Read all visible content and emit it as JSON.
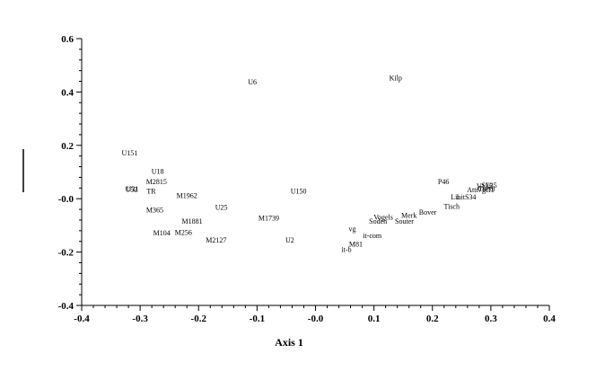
{
  "chart_data": {
    "type": "scatter",
    "title": "",
    "xlabel": "Axis 1",
    "ylabel": "",
    "xlim": [
      -0.4,
      0.4
    ],
    "ylim": [
      -0.4,
      0.6
    ],
    "xticks": [
      "-0.4",
      "-0.3",
      "-0.2",
      "-0.1",
      "-0.0",
      "0.1",
      "0.2",
      "0.3",
      "0.4"
    ],
    "yticks": [
      "0.6",
      "0.4",
      "0.2",
      "-0.0",
      "-0.2",
      "-0.4"
    ],
    "grid": false,
    "points": [
      {
        "label": "U6",
        "x": -0.108,
        "y": 0.438
      },
      {
        "label": "Kilp",
        "x": 0.137,
        "y": 0.454
      },
      {
        "label": "U151",
        "x": -0.318,
        "y": 0.172
      },
      {
        "label": "U18",
        "x": -0.27,
        "y": 0.104
      },
      {
        "label": "M2815",
        "x": -0.272,
        "y": 0.064
      },
      {
        "label": "U52",
        "x": -0.315,
        "y": 0.036
      },
      {
        "label": "U31",
        "x": -0.313,
        "y": 0.038
      },
      {
        "label": "TR",
        "x": -0.281,
        "y": 0.03
      },
      {
        "label": "M1962",
        "x": -0.22,
        "y": 0.012
      },
      {
        "label": "U150",
        "x": -0.029,
        "y": 0.03
      },
      {
        "label": "U25",
        "x": -0.161,
        "y": -0.032
      },
      {
        "label": "M365",
        "x": -0.275,
        "y": -0.042
      },
      {
        "label": "M1739",
        "x": -0.08,
        "y": -0.072
      },
      {
        "label": "M1881",
        "x": -0.211,
        "y": -0.084
      },
      {
        "label": "M104",
        "x": -0.263,
        "y": -0.128
      },
      {
        "label": "M256",
        "x": -0.226,
        "y": -0.126
      },
      {
        "label": "M2127",
        "x": -0.17,
        "y": -0.154
      },
      {
        "label": "U2",
        "x": -0.044,
        "y": -0.154
      },
      {
        "label": "P46",
        "x": 0.219,
        "y": 0.064
      },
      {
        "label": "Attr",
        "x": 0.269,
        "y": 0.034
      },
      {
        "label": "Lin",
        "x": 0.24,
        "y": 0.008
      },
      {
        "label": "LitS34",
        "x": 0.258,
        "y": 0.008
      },
      {
        "label": "V135",
        "x": 0.289,
        "y": 0.048
      },
      {
        "label": "Tuebi",
        "x": 0.293,
        "y": 0.04
      },
      {
        "label": "Vgcl1",
        "x": 0.291,
        "y": 0.034
      },
      {
        "label": "SE35",
        "x": 0.297,
        "y": 0.052
      },
      {
        "label": "Tisch",
        "x": 0.233,
        "y": -0.028
      },
      {
        "label": "Bover",
        "x": 0.192,
        "y": -0.05
      },
      {
        "label": "Merk",
        "x": 0.16,
        "y": -0.062
      },
      {
        "label": "Vogels",
        "x": 0.116,
        "y": -0.068
      },
      {
        "label": "Soden",
        "x": 0.107,
        "y": -0.084
      },
      {
        "label": "Souter",
        "x": 0.152,
        "y": -0.084
      },
      {
        "label": "vg",
        "x": 0.063,
        "y": -0.112
      },
      {
        "label": "it-com",
        "x": 0.097,
        "y": -0.138
      },
      {
        "label": "M81",
        "x": 0.069,
        "y": -0.17
      },
      {
        "label": "it-b",
        "x": 0.053,
        "y": -0.19
      }
    ]
  }
}
